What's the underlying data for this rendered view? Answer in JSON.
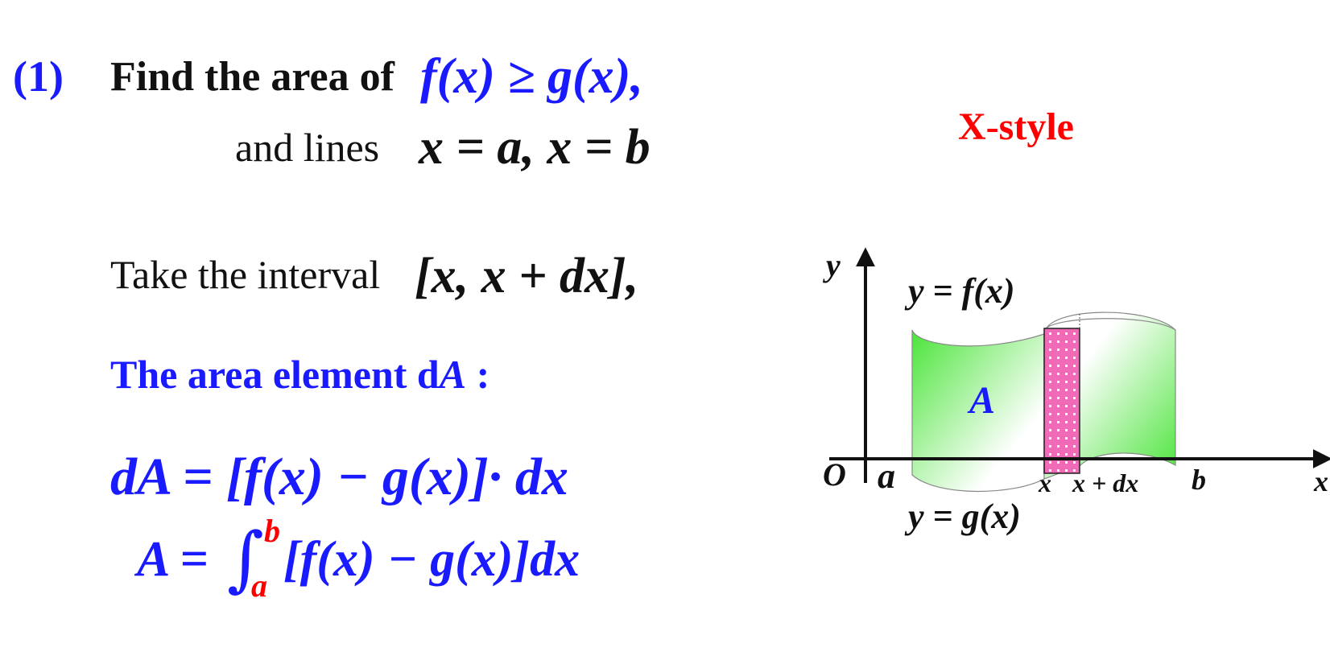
{
  "problem": {
    "number": "(1)",
    "find_text": "Find the area of",
    "condition": "f(x) ≥ g(x),",
    "and_lines_text": "and lines",
    "lines": "x = a, x = b"
  },
  "heading": {
    "style_label": "X-style"
  },
  "interval": {
    "text": "Take the interval",
    "expr": "[x, x + dx],"
  },
  "element": {
    "label_text": "The area element d",
    "label_var": "A",
    "label_colon": " :"
  },
  "formulas": {
    "dA_lhs": "dA = ",
    "dA_rhs": "[f(x) − g(x)]· dx",
    "A_lhs": "A = ",
    "integral_sign": "∫",
    "upper_limit": "b",
    "lower_limit": "a",
    "A_rhs": "[f(x) − g(x)]dx"
  },
  "diagram": {
    "y_axis_label": "y",
    "x_axis_label": "x",
    "origin_label": "O",
    "a_label": "a",
    "b_label": "b",
    "x_label": "x",
    "x_plus_dx_label": "x + dx",
    "f_label": "y = f(x)",
    "g_label": "y = g(x)",
    "region_label": "A",
    "colors": {
      "region_green": "#4be43a",
      "strip_pink": "#f06ab8",
      "axis": "#111111"
    }
  }
}
